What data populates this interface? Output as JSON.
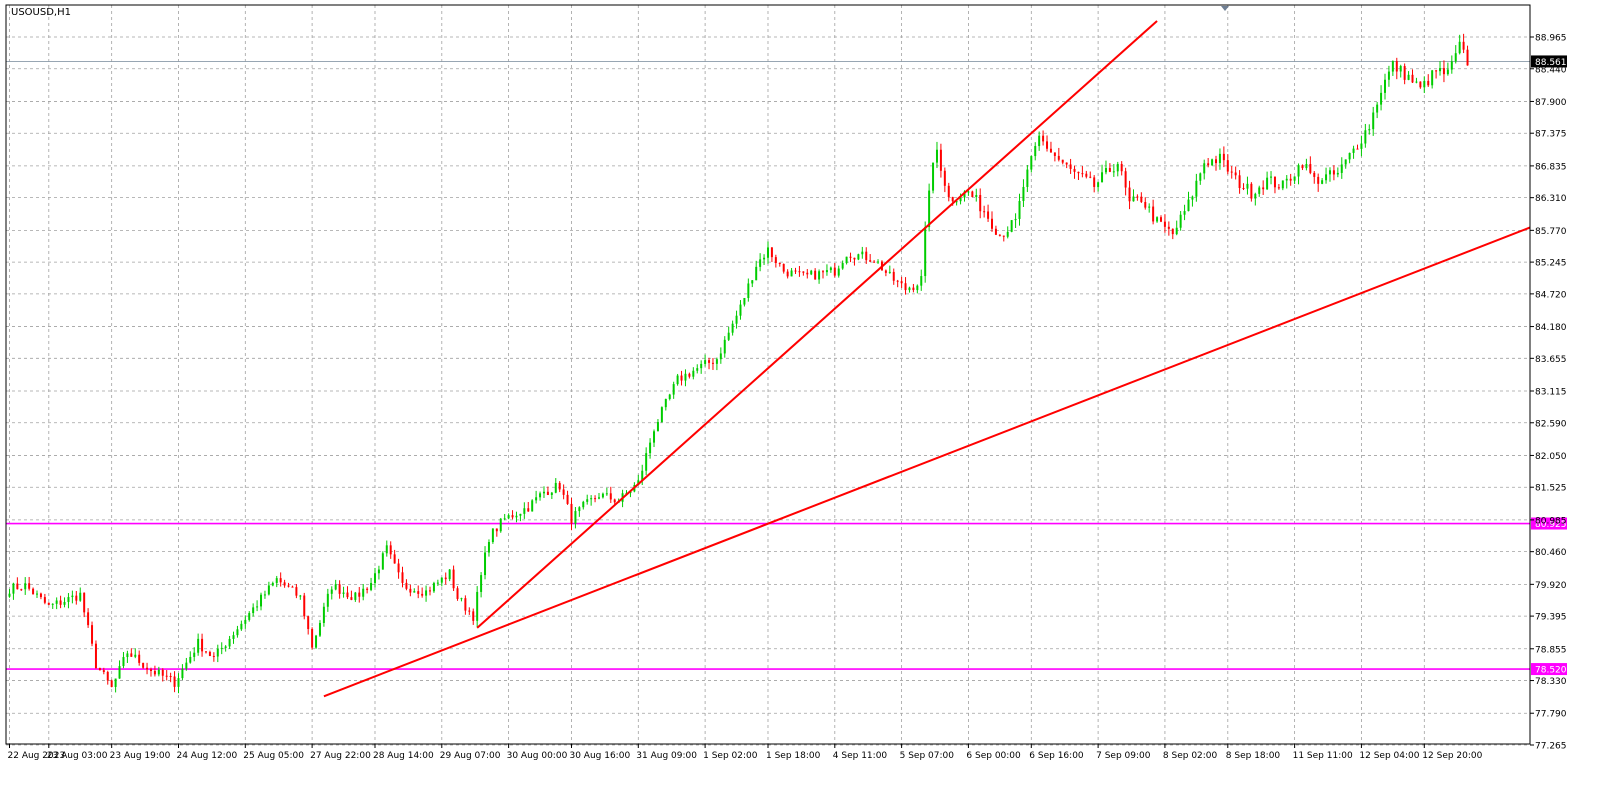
{
  "chart_data": {
    "type": "candlestick",
    "symbol_label": "USOUSD,H1",
    "ylim": [
      77.265,
      89.23
    ],
    "y_ticks": [
      "88.965",
      "88.440",
      "87.900",
      "87.375",
      "86.835",
      "86.310",
      "85.770",
      "85.245",
      "84.720",
      "84.180",
      "83.655",
      "83.115",
      "82.590",
      "82.050",
      "81.525",
      "80.985",
      "80.460",
      "79.920",
      "79.395",
      "78.855",
      "78.330",
      "77.790",
      "77.265"
    ],
    "x_labels": [
      {
        "label": "22 Aug 2023",
        "i": 0
      },
      {
        "label": "23 Aug 03:00",
        "i": 10
      },
      {
        "label": "23 Aug 19:00",
        "i": 26
      },
      {
        "label": "24 Aug 12:00",
        "i": 43
      },
      {
        "label": "25 Aug 05:00",
        "i": 60
      },
      {
        "label": "27 Aug 22:00",
        "i": 77
      },
      {
        "label": "28 Aug 14:00",
        "i": 93
      },
      {
        "label": "29 Aug 07:00",
        "i": 110
      },
      {
        "label": "30 Aug 00:00",
        "i": 127
      },
      {
        "label": "30 Aug 16:00",
        "i": 143
      },
      {
        "label": "31 Aug 09:00",
        "i": 160
      },
      {
        "label": "1 Sep 02:00",
        "i": 177
      },
      {
        "label": "1 Sep 18:00",
        "i": 193
      },
      {
        "label": "4 Sep 11:00",
        "i": 210
      },
      {
        "label": "5 Sep 07:00",
        "i": 227
      },
      {
        "label": "6 Sep 00:00",
        "i": 244
      },
      {
        "label": "6 Sep 16:00",
        "i": 260
      },
      {
        "label": "7 Sep 09:00",
        "i": 277
      },
      {
        "label": "8 Sep 02:00",
        "i": 294
      },
      {
        "label": "8 Sep 18:00",
        "i": 310
      },
      {
        "label": "11 Sep 11:00",
        "i": 327
      },
      {
        "label": "12 Sep 04:00",
        "i": 344
      },
      {
        "label": "12 Sep 20:00",
        "i": 360
      }
    ],
    "current_price": {
      "value": 88.561,
      "label": "88.561"
    },
    "horizontal_levels": [
      {
        "value": 80.925,
        "label": "80.925",
        "color": "#ff00ff"
      },
      {
        "value": 78.52,
        "label": "78.520",
        "color": "#ff00ff"
      }
    ],
    "trendlines": [
      {
        "from": {
          "i": 119,
          "price": 79.2
        },
        "to": {
          "i": 292,
          "price": 89.23
        },
        "color": "#ff0000"
      },
      {
        "from": {
          "i": 80,
          "price": 78.07
        },
        "to": {
          "i": 410,
          "price": 86.4
        },
        "color": "#ff0000"
      }
    ],
    "colors": {
      "bull": "#00cc00",
      "bear": "#ff0000",
      "grid": "#a0a0a0",
      "axis": "#000000"
    },
    "anchors": [
      {
        "i": 0,
        "price": 79.85
      },
      {
        "i": 4,
        "price": 79.9
      },
      {
        "i": 10,
        "price": 79.55
      },
      {
        "i": 18,
        "price": 79.75
      },
      {
        "i": 22,
        "price": 78.6
      },
      {
        "i": 26,
        "price": 78.2
      },
      {
        "i": 30,
        "price": 78.8
      },
      {
        "i": 36,
        "price": 78.5
      },
      {
        "i": 42,
        "price": 78.3
      },
      {
        "i": 48,
        "price": 78.95
      },
      {
        "i": 52,
        "price": 78.7
      },
      {
        "i": 58,
        "price": 79.2
      },
      {
        "i": 63,
        "price": 79.6
      },
      {
        "i": 68,
        "price": 80.0
      },
      {
        "i": 74,
        "price": 79.7
      },
      {
        "i": 77,
        "price": 78.9
      },
      {
        "i": 82,
        "price": 79.9
      },
      {
        "i": 88,
        "price": 79.7
      },
      {
        "i": 92,
        "price": 79.95
      },
      {
        "i": 96,
        "price": 80.5
      },
      {
        "i": 100,
        "price": 79.9
      },
      {
        "i": 106,
        "price": 79.8
      },
      {
        "i": 112,
        "price": 80.1
      },
      {
        "i": 114,
        "price": 79.7
      },
      {
        "i": 118,
        "price": 79.4
      },
      {
        "i": 122,
        "price": 80.7
      },
      {
        "i": 126,
        "price": 81.0
      },
      {
        "i": 132,
        "price": 81.2
      },
      {
        "i": 136,
        "price": 81.45
      },
      {
        "i": 140,
        "price": 81.55
      },
      {
        "i": 143,
        "price": 81.0
      },
      {
        "i": 146,
        "price": 81.2
      },
      {
        "i": 150,
        "price": 81.4
      },
      {
        "i": 155,
        "price": 81.3
      },
      {
        "i": 160,
        "price": 81.6
      },
      {
        "i": 164,
        "price": 82.5
      },
      {
        "i": 170,
        "price": 83.3
      },
      {
        "i": 174,
        "price": 83.45
      },
      {
        "i": 180,
        "price": 83.65
      },
      {
        "i": 186,
        "price": 84.5
      },
      {
        "i": 190,
        "price": 85.2
      },
      {
        "i": 193,
        "price": 85.45
      },
      {
        "i": 197,
        "price": 85.1
      },
      {
        "i": 202,
        "price": 85.0
      },
      {
        "i": 210,
        "price": 85.1
      },
      {
        "i": 213,
        "price": 85.4
      },
      {
        "i": 220,
        "price": 85.3
      },
      {
        "i": 224,
        "price": 85.0
      },
      {
        "i": 228,
        "price": 84.8
      },
      {
        "i": 232,
        "price": 84.95
      },
      {
        "i": 234,
        "price": 86.5
      },
      {
        "i": 236,
        "price": 87.1
      },
      {
        "i": 239,
        "price": 86.3
      },
      {
        "i": 244,
        "price": 86.4
      },
      {
        "i": 248,
        "price": 86.1
      },
      {
        "i": 252,
        "price": 85.7
      },
      {
        "i": 256,
        "price": 85.9
      },
      {
        "i": 258,
        "price": 86.5
      },
      {
        "i": 262,
        "price": 87.3
      },
      {
        "i": 266,
        "price": 87.0
      },
      {
        "i": 270,
        "price": 86.75
      },
      {
        "i": 276,
        "price": 86.5
      },
      {
        "i": 282,
        "price": 86.9
      },
      {
        "i": 285,
        "price": 86.2
      },
      {
        "i": 288,
        "price": 86.3
      },
      {
        "i": 292,
        "price": 85.9
      },
      {
        "i": 296,
        "price": 85.7
      },
      {
        "i": 300,
        "price": 86.2
      },
      {
        "i": 304,
        "price": 86.9
      },
      {
        "i": 308,
        "price": 86.95
      },
      {
        "i": 312,
        "price": 86.6
      },
      {
        "i": 316,
        "price": 86.4
      },
      {
        "i": 320,
        "price": 86.6
      },
      {
        "i": 324,
        "price": 86.5
      },
      {
        "i": 329,
        "price": 86.9
      },
      {
        "i": 332,
        "price": 86.6
      },
      {
        "i": 338,
        "price": 86.7
      },
      {
        "i": 342,
        "price": 87.1
      },
      {
        "i": 346,
        "price": 87.5
      },
      {
        "i": 349,
        "price": 88.1
      },
      {
        "i": 352,
        "price": 88.5
      },
      {
        "i": 356,
        "price": 88.3
      },
      {
        "i": 359,
        "price": 88.1
      },
      {
        "i": 363,
        "price": 88.4
      },
      {
        "i": 366,
        "price": 88.35
      },
      {
        "i": 369,
        "price": 88.8
      },
      {
        "i": 371,
        "price": 88.56
      }
    ],
    "volatility": [
      {
        "i_start": 0,
        "i_end": 230,
        "amp": 0.12
      },
      {
        "i_start": 230,
        "i_end": 372,
        "amp": 0.15
      }
    ]
  }
}
